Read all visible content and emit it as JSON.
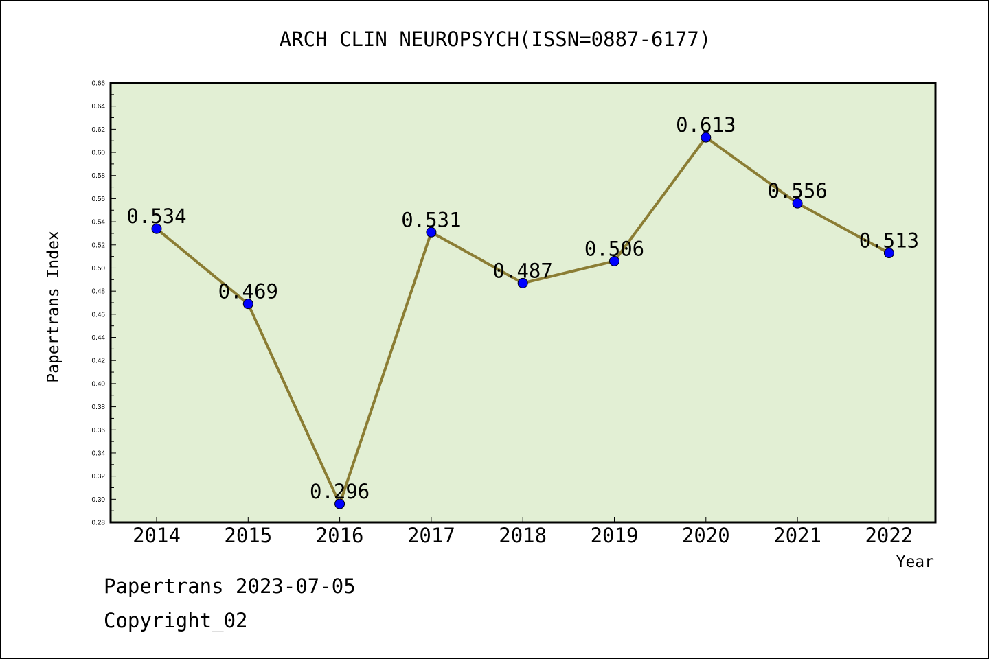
{
  "chart_data": {
    "type": "line",
    "title": "ARCH CLIN NEUROPSYCH(ISSN=0887-6177)",
    "xlabel": "Year",
    "ylabel": "Papertrans Index",
    "categories": [
      "2014",
      "2015",
      "2016",
      "2017",
      "2018",
      "2019",
      "2020",
      "2021",
      "2022"
    ],
    "values": [
      0.534,
      0.469,
      0.296,
      0.531,
      0.487,
      0.506,
      0.613,
      0.556,
      0.513
    ],
    "data_labels": [
      "0.534",
      "0.469",
      "0.296",
      "0.531",
      "0.487",
      "0.506",
      "0.613",
      "0.556",
      "0.513"
    ],
    "ylim": [
      0.28,
      0.66
    ],
    "yticks": [
      "0.28",
      "0.30",
      "0.32",
      "0.34",
      "0.36",
      "0.38",
      "0.40",
      "0.42",
      "0.44",
      "0.46",
      "0.48",
      "0.50",
      "0.52",
      "0.54",
      "0.56",
      "0.58",
      "0.60",
      "0.62",
      "0.64",
      "0.66"
    ],
    "grid": false,
    "legend": "none",
    "colors": {
      "plot_background": "#e2efd4",
      "line": "#8b7d34",
      "marker": "#0000ff"
    }
  },
  "footer": {
    "source": "Papertrans 2023-07-05",
    "copyright": "Copyright_02"
  }
}
